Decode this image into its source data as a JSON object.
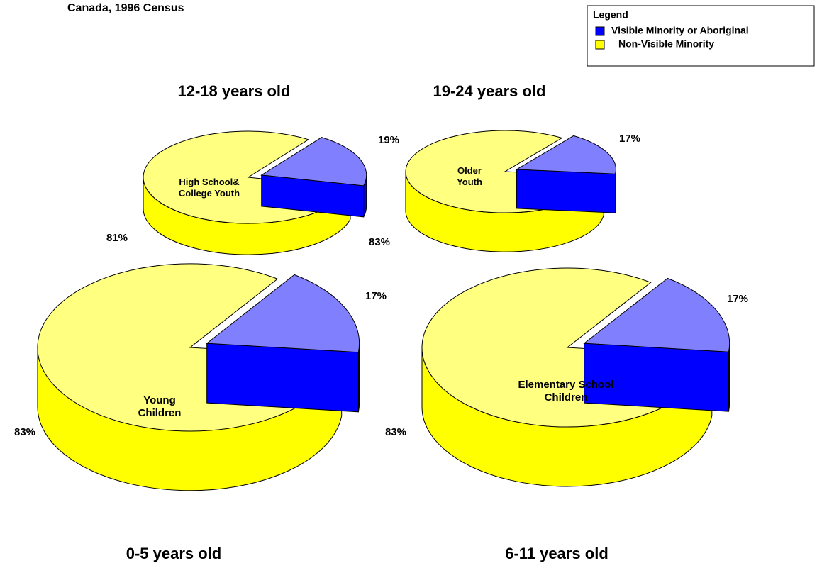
{
  "header": {
    "subtitle": "Canada, 1996 Census"
  },
  "legend": {
    "title": "Legend",
    "items": [
      {
        "name": "Visible Minority or Aboriginal",
        "color": "#0000ff"
      },
      {
        "name": "Non-Visible Minority",
        "color": "#ffff00"
      }
    ]
  },
  "chart_data": [
    {
      "type": "pie",
      "title": "12-18 years old",
      "label": "High School& College Youth",
      "values": [
        19,
        81
      ],
      "value_labels": [
        "19%",
        "81%"
      ]
    },
    {
      "type": "pie",
      "title": "19-24 years old",
      "label": "Older Youth",
      "values": [
        17,
        83
      ],
      "value_labels": [
        "17%",
        "83%"
      ]
    },
    {
      "type": "pie",
      "title": "0-5 years old",
      "label": "Young Children",
      "values": [
        17,
        83
      ],
      "value_labels": [
        "17%",
        "83%"
      ]
    },
    {
      "type": "pie",
      "title": "6-11 years old",
      "label": "Elementary School Children",
      "values": [
        17,
        83
      ],
      "value_labels": [
        "17%",
        "83%"
      ]
    }
  ]
}
